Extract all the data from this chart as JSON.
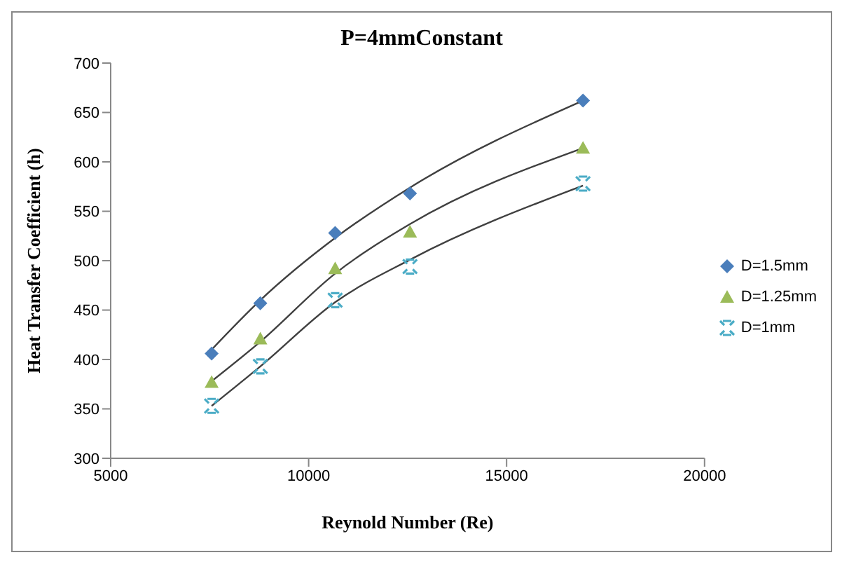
{
  "chart_data": {
    "type": "scatter",
    "title": "P=4mmConstant",
    "xlabel": "Reynold Number (Re)",
    "ylabel": "Heat Transfer Coefficient (h)",
    "x": [
      7550,
      8780,
      10670,
      12560,
      16930
    ],
    "series": [
      {
        "name": "D=1.5mm",
        "color": "#4a7ebb",
        "marker": "diamond",
        "values": [
          406,
          457,
          528,
          568,
          662
        ]
      },
      {
        "name": "D=1.25mm",
        "color": "#9bbb59",
        "marker": "triangle",
        "values": [
          377,
          421,
          492,
          529,
          614
        ]
      },
      {
        "name": "D=1mm",
        "color": "#4bacc6",
        "marker": "cross",
        "values": [
          353,
          393,
          460,
          494,
          578
        ]
      },
      {
        "type": "line",
        "color": "#404040",
        "marker": "none",
        "x": [
          7550,
          8780,
          10670,
          12560,
          16930
        ],
        "values": [
          410,
          460,
          523,
          574,
          662
        ]
      },
      {
        "type": "line",
        "color": "#404040",
        "marker": "none",
        "x": [
          7550,
          8780,
          10670,
          12560,
          16930
        ],
        "values": [
          378,
          418,
          487,
          537,
          614
        ]
      },
      {
        "type": "line",
        "color": "#404040",
        "marker": "none",
        "x": [
          7550,
          8780,
          10670,
          12560,
          16930
        ],
        "values": [
          353,
          393,
          458,
          501,
          576
        ]
      }
    ],
    "xlim": [
      5000,
      20000
    ],
    "xticks": [
      5000,
      10000,
      15000,
      20000
    ],
    "ylim": [
      300,
      700
    ],
    "yticks": [
      300,
      350,
      400,
      450,
      500,
      550,
      600,
      650,
      700
    ],
    "grid": false,
    "legend": "right"
  }
}
